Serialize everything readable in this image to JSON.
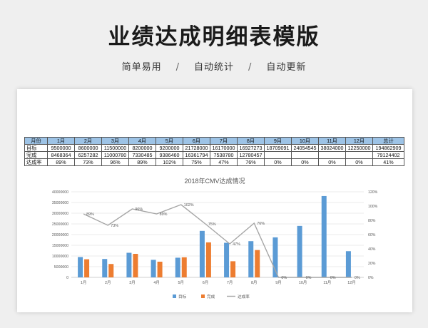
{
  "page": {
    "title": "业绩达成明细表模版",
    "features": [
      "简单易用",
      "自动统计",
      "自动更新"
    ],
    "separator": "/"
  },
  "table": {
    "headers": [
      "月份",
      "1月",
      "2月",
      "3月",
      "4月",
      "5月",
      "6月",
      "7月",
      "8月",
      "9月",
      "10月",
      "11月",
      "12月",
      "总计"
    ],
    "rows": [
      {
        "label": "目标",
        "cells": [
          "9500000",
          "8600000",
          "11500000",
          "8200000",
          "9200000",
          "21728000",
          "16170000",
          "16927273",
          "18709091",
          "24054545",
          "38024000",
          "12250000",
          "194862909"
        ]
      },
      {
        "label": "完成",
        "cells": [
          "8468364",
          "6257282",
          "11000780",
          "7330485",
          "9386460",
          "16361794",
          "7538780",
          "12780457",
          "",
          "",
          "",
          "",
          "79124402"
        ]
      },
      {
        "label": "达成率",
        "cells": [
          "89%",
          "73%",
          "96%",
          "89%",
          "102%",
          "75%",
          "47%",
          "76%",
          "0%",
          "0%",
          "0%",
          "0%",
          "41%"
        ]
      }
    ]
  },
  "chart_data": {
    "type": "bar",
    "title": "2018年CMV达成情况",
    "categories": [
      "1月",
      "2月",
      "3月",
      "4月",
      "5月",
      "6月",
      "7月",
      "8月",
      "9月",
      "10月",
      "11月",
      "12月"
    ],
    "series": [
      {
        "name": "目标",
        "type": "bar",
        "color": "#5b9bd5",
        "values": [
          9500000,
          8600000,
          11500000,
          8200000,
          9200000,
          21728000,
          16170000,
          16927273,
          18709091,
          24054545,
          38024000,
          12250000
        ]
      },
      {
        "name": "完成",
        "type": "bar",
        "color": "#ed7d31",
        "values": [
          8468364,
          6257282,
          11000780,
          7330485,
          9386460,
          16361794,
          7538780,
          12780457,
          0,
          0,
          0,
          0
        ]
      },
      {
        "name": "达成率",
        "type": "line",
        "axis": "right",
        "color": "#a5a5a5",
        "values": [
          0.89,
          0.73,
          0.96,
          0.89,
          1.02,
          0.75,
          0.47,
          0.76,
          0,
          0,
          0,
          0
        ]
      }
    ],
    "data_labels": [
      "89%",
      "73%",
      "96%",
      "89%",
      "102%",
      "75%",
      "47%",
      "76%",
      "0%",
      "0%",
      "0%",
      "0%"
    ],
    "ylim": [
      0,
      40000000
    ],
    "y_ticks": [
      "0",
      "5000000",
      "10000000",
      "15000000",
      "20000000",
      "25000000",
      "30000000",
      "35000000",
      "40000000"
    ],
    "y2lim": [
      0,
      1.2
    ],
    "y2_ticks": [
      "0%",
      "20%",
      "40%",
      "60%",
      "80%",
      "100%",
      "120%"
    ],
    "grid": true,
    "legend_position": "bottom",
    "legend": [
      "目标",
      "完成",
      "达成率"
    ]
  }
}
